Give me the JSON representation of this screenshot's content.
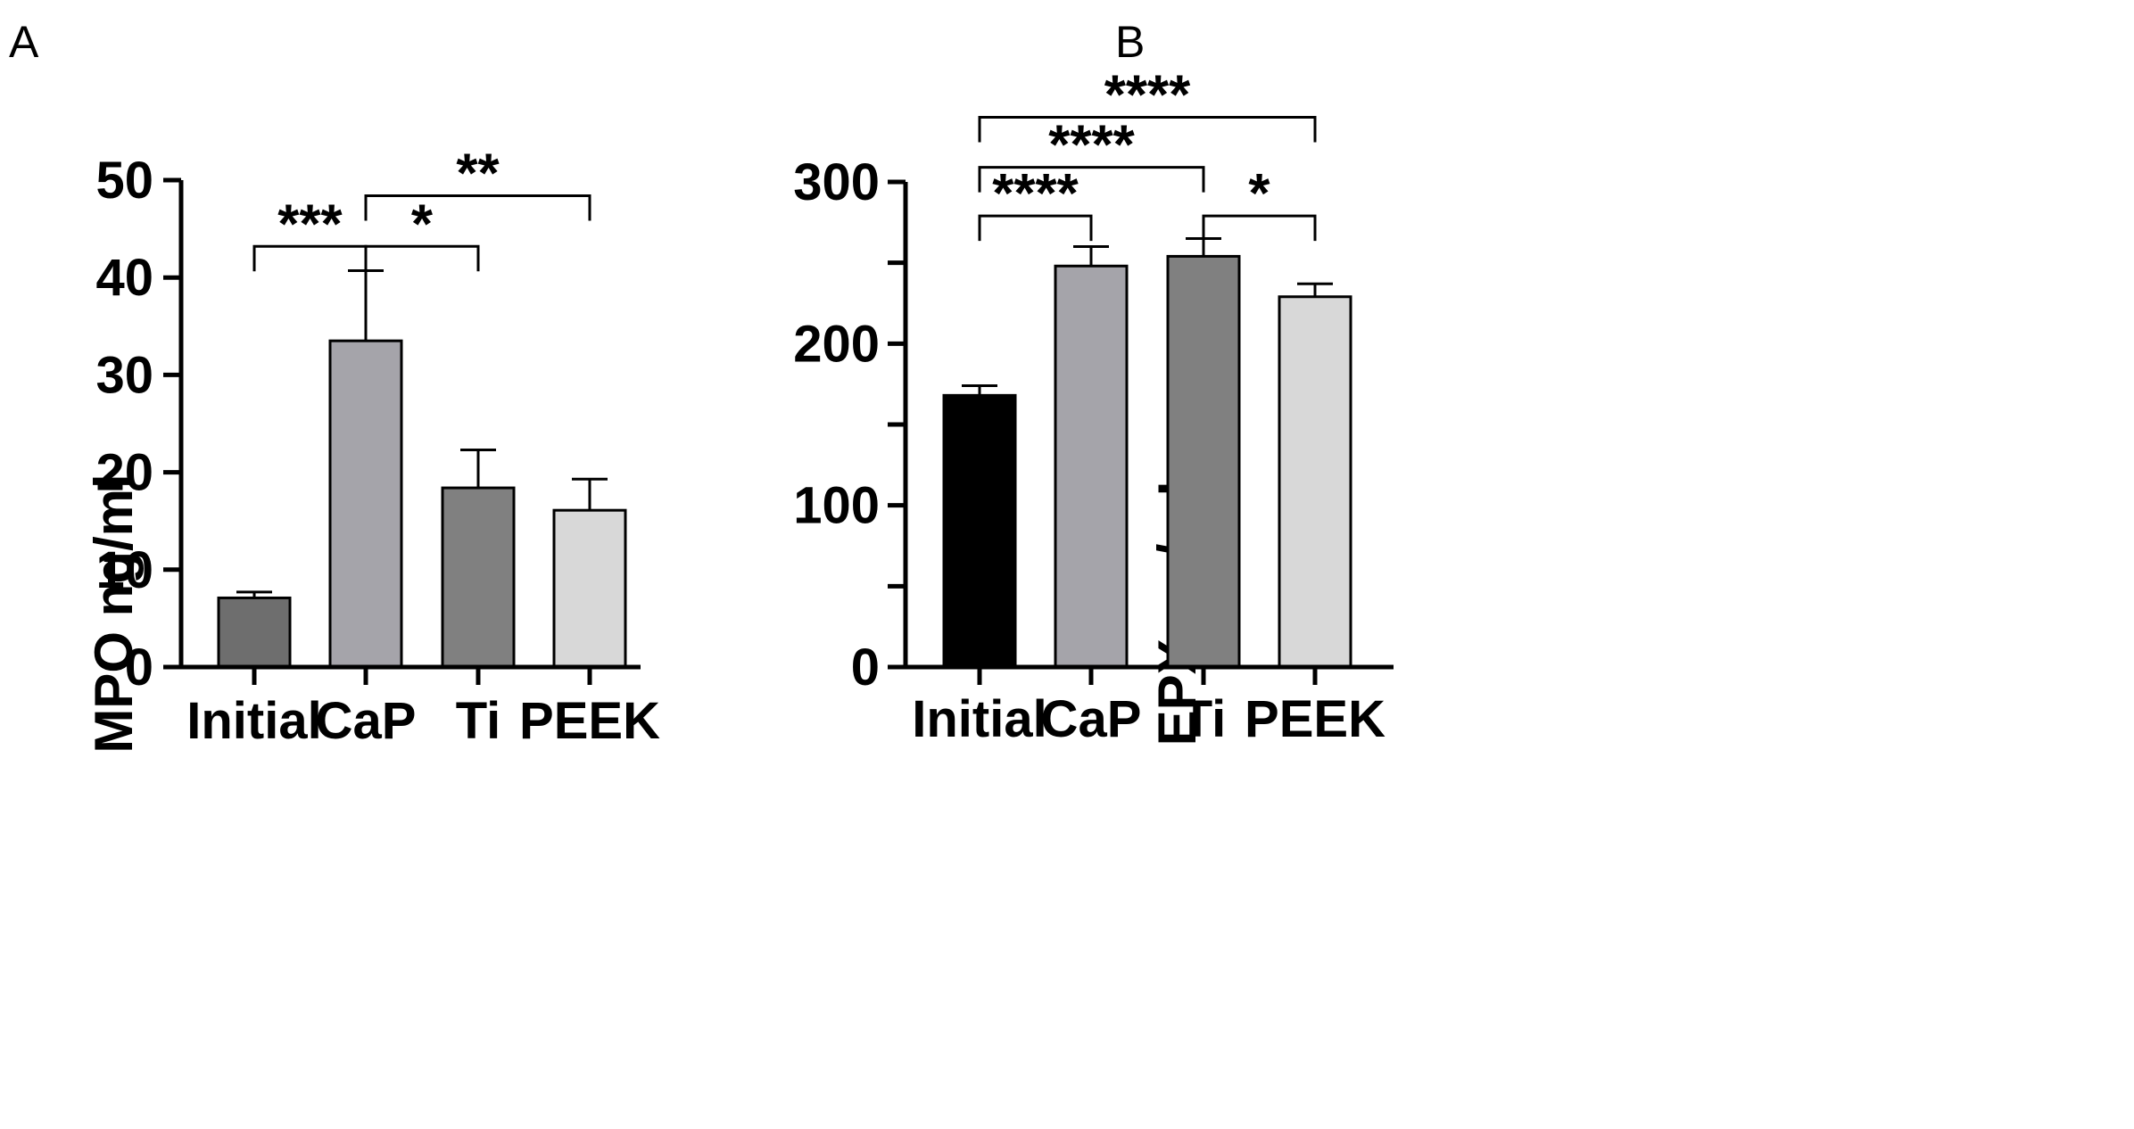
{
  "chart_data": [
    {
      "panel": "A",
      "type": "bar",
      "categories": [
        "Initial",
        "CaP",
        "Ti",
        "PEEK"
      ],
      "values": [
        7.1,
        33.5,
        18.4,
        16.1
      ],
      "errors": [
        0.6,
        7.2,
        3.9,
        3.2
      ],
      "colors": [
        "#6e6e6e",
        "#a5a4aa",
        "#808080",
        "#d8d8d8"
      ],
      "ylabel": "MPO ng/ml",
      "ylim": [
        0,
        50
      ],
      "yticks": [
        0,
        10,
        20,
        30,
        40,
        50
      ],
      "ytick_labels": [
        "0",
        "10",
        "20",
        "30",
        "40",
        "50"
      ],
      "significance": [
        {
          "from": 0,
          "to": 1,
          "label": "***",
          "level": 43.2
        },
        {
          "from": 1,
          "to": 2,
          "label": "*",
          "level": 43.2
        },
        {
          "from": 1,
          "to": 3,
          "label": "**",
          "level": 48.4
        }
      ]
    },
    {
      "panel": "B",
      "type": "bar",
      "categories": [
        "Initial",
        "CaP",
        "Ti",
        "PEEK"
      ],
      "values": [
        168,
        248,
        254,
        229
      ],
      "errors": [
        6,
        12,
        11,
        8
      ],
      "colors": [
        "#000000",
        "#a5a4aa",
        "#808080",
        "#d8d8d8"
      ],
      "ylabel": "EPX ng/mL",
      "ylim": [
        0,
        300
      ],
      "yticks": [
        0,
        50,
        100,
        150,
        200,
        250,
        300
      ],
      "ytick_labels": [
        "0",
        "",
        "100",
        "",
        "200",
        "",
        "300"
      ],
      "significance": [
        {
          "from": 0,
          "to": 1,
          "label": "****",
          "level": 279
        },
        {
          "from": 2,
          "to": 3,
          "label": "*",
          "level": 279
        },
        {
          "from": 0,
          "to": 2,
          "label": "****",
          "level": 309
        },
        {
          "from": 0,
          "to": 3,
          "label": "****",
          "level": 340
        }
      ]
    }
  ]
}
